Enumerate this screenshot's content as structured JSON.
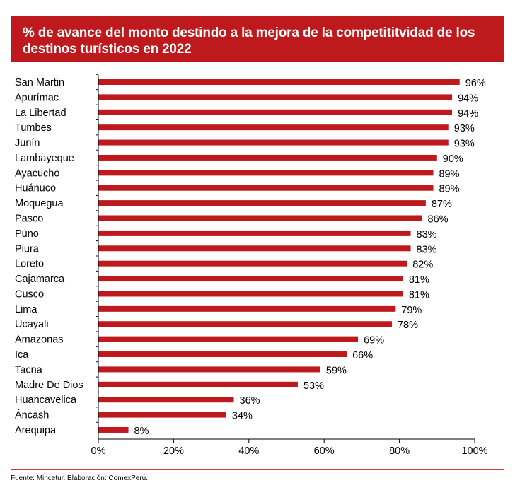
{
  "chart_data": {
    "type": "bar",
    "orientation": "horizontal",
    "title": "% de avance del monto destindo a la mejora de la competititvidad de los destinos turísticos en 2022",
    "categories": [
      "San Martin",
      "Apurímac",
      "La Libertad",
      "Tumbes",
      "Junín",
      "Lambayeque",
      "Ayacucho",
      "Huánuco",
      "Moquegua",
      "Pasco",
      "Puno",
      "Piura",
      "Loreto",
      "Cajamarca",
      "Cusco",
      "Lima",
      "Ucayali",
      "Amazonas",
      "Ica",
      "Tacna",
      "Madre De Dios",
      "Huancavelica",
      "Áncash",
      "Arequipa"
    ],
    "values": [
      96,
      94,
      94,
      93,
      93,
      90,
      89,
      89,
      87,
      86,
      83,
      83,
      82,
      81,
      81,
      79,
      78,
      69,
      66,
      59,
      53,
      36,
      34,
      8
    ],
    "value_labels": [
      "96%",
      "94%",
      "94%",
      "93%",
      "93%",
      "90%",
      "89%",
      "89%",
      "87%",
      "86%",
      "83%",
      "83%",
      "82%",
      "81%",
      "81%",
      "79%",
      "78%",
      "69%",
      "66%",
      "59%",
      "53%",
      "36%",
      "34%",
      "8%"
    ],
    "xlim": [
      0,
      100
    ],
    "xticks": [
      0,
      20,
      40,
      60,
      80,
      100
    ],
    "xtick_labels": [
      "0%",
      "20%",
      "40%",
      "60%",
      "80%",
      "100%"
    ],
    "xlabel": "",
    "ylabel": "",
    "grid": false,
    "legend": "none",
    "bar_color": "#be1a1e"
  },
  "footer": {
    "source": "Fuente: Mincetur. Elaboración: ComexPerú."
  },
  "colors": {
    "title_bg": "#be1a1e",
    "rule": "#d9383c"
  }
}
